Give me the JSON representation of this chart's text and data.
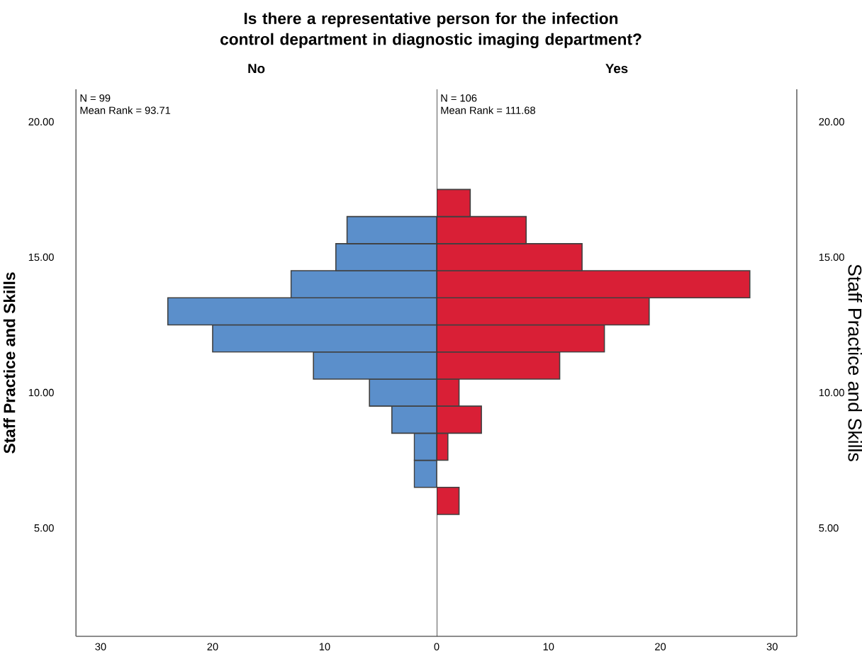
{
  "chart_data": [
    {
      "type": "histogram",
      "orientation": "horizontal",
      "title": "Is there a representative person for the infection control department in diagnostic imaging department?",
      "subtitle": "No",
      "ylabel": "Staff Practice and Skills",
      "color": "#5b8fcb",
      "bins": [
        6.5,
        7.5,
        8.5,
        9.5,
        10.5,
        11.5,
        12.5,
        13.5,
        14.5,
        15.5,
        16.5
      ],
      "values": [
        2,
        2,
        4,
        6,
        11,
        20,
        24,
        13,
        9,
        8
      ],
      "xlim": [
        32.2,
        0
      ],
      "xticks": [
        30,
        20,
        10,
        0
      ],
      "ylim": [
        1,
        21.2
      ],
      "yticks": [
        {
          "value": 5,
          "label": "5.00"
        },
        {
          "value": 10,
          "label": "10.00"
        },
        {
          "value": 15,
          "label": "15.00"
        },
        {
          "value": 20,
          "label": "20.00"
        }
      ],
      "annotations": [
        "N = 99",
        "Mean Rank = 93.71"
      ]
    },
    {
      "type": "histogram",
      "orientation": "horizontal",
      "subtitle": "Yes",
      "ylabel": "Staff Practice and Skills",
      "color": "#d91f36",
      "bins": [
        5.5,
        6.5,
        7.5,
        8.5,
        9.5,
        10.5,
        11.5,
        12.5,
        13.5,
        14.5,
        15.5,
        16.5,
        17.5
      ],
      "values": [
        2,
        0,
        1,
        4,
        2,
        11,
        15,
        19,
        28,
        13,
        8,
        3
      ],
      "xlim": [
        0,
        32.2
      ],
      "xticks": [
        10,
        20,
        30
      ],
      "ylim": [
        1,
        21.2
      ],
      "yticks": [
        {
          "value": 5,
          "label": "5.00"
        },
        {
          "value": 10,
          "label": "10.00"
        },
        {
          "value": 15,
          "label": "15.00"
        },
        {
          "value": 20,
          "label": "20.00"
        }
      ],
      "annotations": [
        "N = 106",
        "Mean Rank = 111.68"
      ]
    }
  ]
}
